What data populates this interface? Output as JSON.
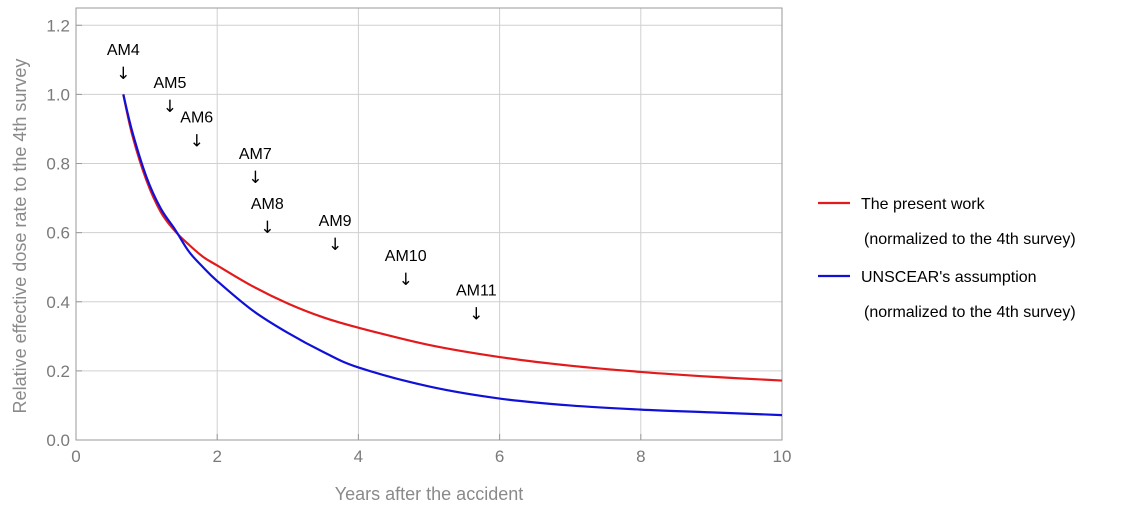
{
  "chart_data": {
    "type": "line",
    "xlabel": "Years after the accident",
    "ylabel": "Relative effective dose rate to the 4th survey",
    "xlim": [
      0,
      10
    ],
    "ylim": [
      0,
      1.25
    ],
    "xticks": [
      {
        "v": 0,
        "label": "0"
      },
      {
        "v": 2,
        "label": "2"
      },
      {
        "v": 4,
        "label": "4"
      },
      {
        "v": 6,
        "label": "6"
      },
      {
        "v": 8,
        "label": "8"
      },
      {
        "v": 10,
        "label": "10"
      }
    ],
    "yticks": [
      {
        "v": 0,
        "label": "0.0"
      },
      {
        "v": 0.2,
        "label": "0.2"
      },
      {
        "v": 0.4,
        "label": "0.4"
      },
      {
        "v": 0.6,
        "label": "0.6"
      },
      {
        "v": 0.8,
        "label": "0.8"
      },
      {
        "v": 1.0,
        "label": "1.0"
      },
      {
        "v": 1.2,
        "label": "1.2"
      }
    ],
    "grid": true,
    "legend_position": "right",
    "series": [
      {
        "name": "The present work",
        "note": "(normalized to the 4th survey)",
        "color": "#e31a1c",
        "x": [
          0.67,
          0.8,
          1.0,
          1.2,
          1.4,
          1.6,
          1.8,
          2.0,
          2.5,
          3.0,
          3.5,
          4.0,
          5.0,
          6.0,
          7.0,
          8.0,
          9.0,
          10.0
        ],
        "y": [
          1.0,
          0.88,
          0.75,
          0.66,
          0.605,
          0.565,
          0.53,
          0.505,
          0.445,
          0.395,
          0.355,
          0.325,
          0.275,
          0.24,
          0.215,
          0.197,
          0.183,
          0.172
        ]
      },
      {
        "name": "UNSCEAR's assumption",
        "note": "(normalized to the 4th survey)",
        "color": "#1010d8",
        "x": [
          0.67,
          0.8,
          1.0,
          1.2,
          1.4,
          1.6,
          1.8,
          2.0,
          2.5,
          3.0,
          3.5,
          4.0,
          5.0,
          6.0,
          7.0,
          8.0,
          9.0,
          10.0
        ],
        "y": [
          1.0,
          0.89,
          0.76,
          0.67,
          0.61,
          0.545,
          0.5,
          0.46,
          0.375,
          0.31,
          0.255,
          0.21,
          0.155,
          0.12,
          0.1,
          0.088,
          0.08,
          0.072
        ]
      }
    ],
    "annotations": [
      {
        "label": "AM4",
        "x": 0.67,
        "y": 1.05
      },
      {
        "label": "AM5",
        "x": 1.33,
        "y": 0.955
      },
      {
        "label": "AM6",
        "x": 1.71,
        "y": 0.855
      },
      {
        "label": "AM7",
        "x": 2.54,
        "y": 0.75
      },
      {
        "label": "AM8",
        "x": 2.71,
        "y": 0.605
      },
      {
        "label": "AM9",
        "x": 3.67,
        "y": 0.555
      },
      {
        "label": "AM10",
        "x": 4.67,
        "y": 0.455
      },
      {
        "label": "AM11",
        "x": 5.67,
        "y": 0.355
      }
    ],
    "arrow_glyph": "↓"
  }
}
